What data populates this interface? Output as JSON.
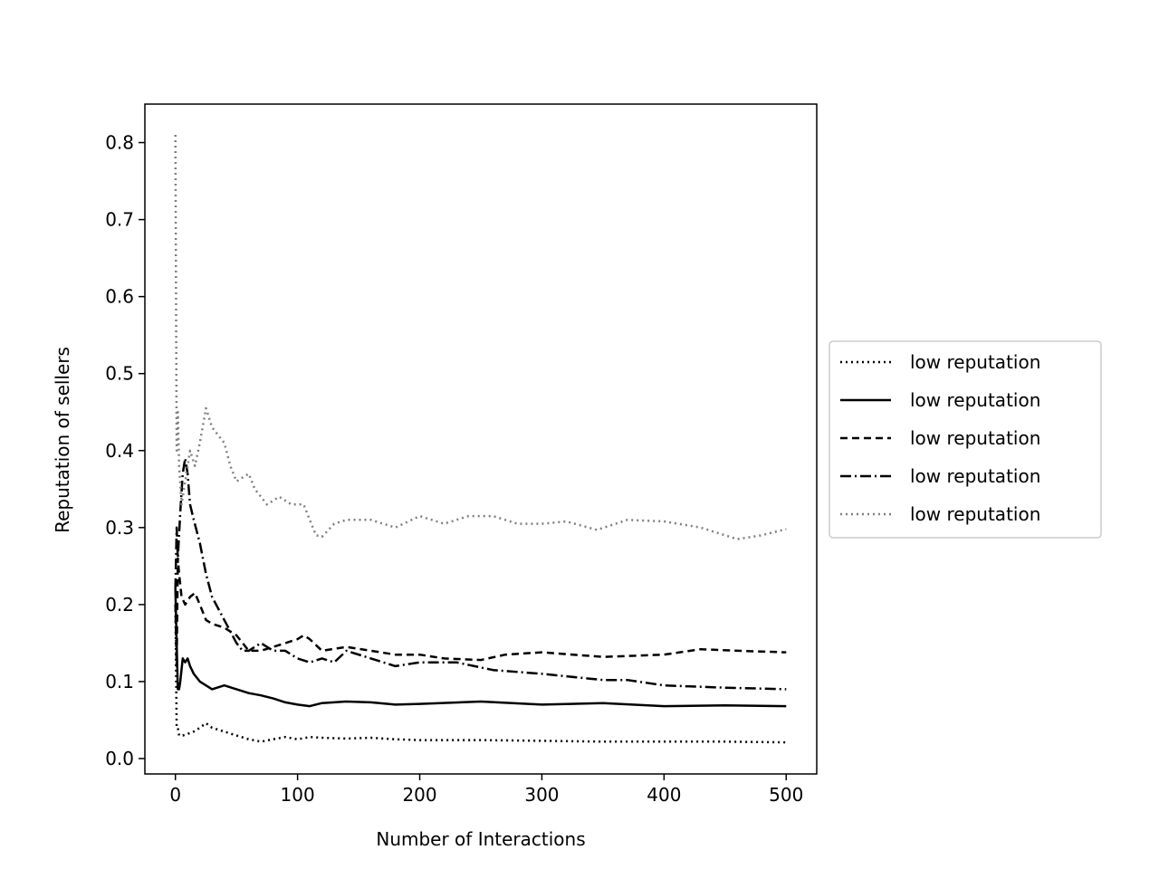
{
  "chart_data": {
    "type": "line",
    "title": "",
    "xlabel": "Number of Interactions",
    "ylabel": "Reputation of sellers",
    "xlim": [
      -25,
      525
    ],
    "ylim": [
      -0.02,
      0.85
    ],
    "x_ticks": [
      0,
      100,
      200,
      300,
      400,
      500
    ],
    "x_tick_labels": [
      "0",
      "100",
      "200",
      "300",
      "400",
      "500"
    ],
    "y_ticks": [
      0.0,
      0.1,
      0.2,
      0.3,
      0.4,
      0.5,
      0.6,
      0.7,
      0.8
    ],
    "y_tick_labels": [
      "0.0",
      "0.1",
      "0.2",
      "0.3",
      "0.4",
      "0.5",
      "0.6",
      "0.7",
      "0.8"
    ],
    "grid": false,
    "legend_position": "center-right outside",
    "series": [
      {
        "name": "low reputation",
        "color": "#000000",
        "style": "dotted",
        "points": [
          [
            0,
            0.2
          ],
          [
            1,
            0.04
          ],
          [
            2,
            0.04
          ],
          [
            3,
            0.03
          ],
          [
            6,
            0.03
          ],
          [
            10,
            0.032
          ],
          [
            15,
            0.035
          ],
          [
            20,
            0.04
          ],
          [
            25,
            0.046
          ],
          [
            30,
            0.04
          ],
          [
            40,
            0.035
          ],
          [
            50,
            0.03
          ],
          [
            60,
            0.025
          ],
          [
            70,
            0.022
          ],
          [
            80,
            0.025
          ],
          [
            90,
            0.028
          ],
          [
            100,
            0.025
          ],
          [
            110,
            0.028
          ],
          [
            120,
            0.027
          ],
          [
            140,
            0.026
          ],
          [
            160,
            0.027
          ],
          [
            180,
            0.025
          ],
          [
            200,
            0.024
          ],
          [
            250,
            0.024
          ],
          [
            300,
            0.023
          ],
          [
            350,
            0.022
          ],
          [
            400,
            0.022
          ],
          [
            450,
            0.022
          ],
          [
            500,
            0.021
          ]
        ]
      },
      {
        "name": "low reputation",
        "color": "#000000",
        "style": "solid",
        "points": [
          [
            0,
            0.22
          ],
          [
            1,
            0.15
          ],
          [
            2,
            0.09
          ],
          [
            3,
            0.09
          ],
          [
            4,
            0.1
          ],
          [
            6,
            0.13
          ],
          [
            8,
            0.125
          ],
          [
            10,
            0.13
          ],
          [
            12,
            0.12
          ],
          [
            15,
            0.11
          ],
          [
            20,
            0.1
          ],
          [
            25,
            0.095
          ],
          [
            30,
            0.09
          ],
          [
            40,
            0.095
          ],
          [
            50,
            0.09
          ],
          [
            60,
            0.085
          ],
          [
            70,
            0.082
          ],
          [
            80,
            0.078
          ],
          [
            90,
            0.073
          ],
          [
            100,
            0.07
          ],
          [
            110,
            0.068
          ],
          [
            120,
            0.072
          ],
          [
            140,
            0.074
          ],
          [
            160,
            0.073
          ],
          [
            180,
            0.07
          ],
          [
            200,
            0.071
          ],
          [
            250,
            0.074
          ],
          [
            300,
            0.07
          ],
          [
            350,
            0.072
          ],
          [
            400,
            0.068
          ],
          [
            450,
            0.069
          ],
          [
            500,
            0.068
          ]
        ]
      },
      {
        "name": "low reputation",
        "color": "#000000",
        "style": "dashed",
        "points": [
          [
            0,
            0.2
          ],
          [
            1,
            0.12
          ],
          [
            2,
            0.26
          ],
          [
            3,
            0.24
          ],
          [
            5,
            0.21
          ],
          [
            8,
            0.2
          ],
          [
            12,
            0.21
          ],
          [
            16,
            0.215
          ],
          [
            20,
            0.2
          ],
          [
            25,
            0.18
          ],
          [
            30,
            0.175
          ],
          [
            40,
            0.17
          ],
          [
            50,
            0.16
          ],
          [
            60,
            0.14
          ],
          [
            70,
            0.14
          ],
          [
            80,
            0.145
          ],
          [
            90,
            0.15
          ],
          [
            100,
            0.155
          ],
          [
            105,
            0.16
          ],
          [
            110,
            0.155
          ],
          [
            120,
            0.14
          ],
          [
            140,
            0.145
          ],
          [
            160,
            0.14
          ],
          [
            180,
            0.135
          ],
          [
            200,
            0.135
          ],
          [
            220,
            0.13
          ],
          [
            250,
            0.128
          ],
          [
            270,
            0.135
          ],
          [
            300,
            0.138
          ],
          [
            350,
            0.132
          ],
          [
            400,
            0.135
          ],
          [
            430,
            0.142
          ],
          [
            460,
            0.14
          ],
          [
            500,
            0.138
          ]
        ]
      },
      {
        "name": "low reputation",
        "color": "#000000",
        "style": "dashdot",
        "points": [
          [
            0,
            0.22
          ],
          [
            1,
            0.3
          ],
          [
            2,
            0.26
          ],
          [
            4,
            0.32
          ],
          [
            6,
            0.37
          ],
          [
            8,
            0.39
          ],
          [
            10,
            0.37
          ],
          [
            12,
            0.33
          ],
          [
            15,
            0.31
          ],
          [
            20,
            0.28
          ],
          [
            25,
            0.24
          ],
          [
            30,
            0.21
          ],
          [
            40,
            0.18
          ],
          [
            50,
            0.15
          ],
          [
            55,
            0.14
          ],
          [
            60,
            0.14
          ],
          [
            70,
            0.15
          ],
          [
            80,
            0.14
          ],
          [
            90,
            0.14
          ],
          [
            100,
            0.13
          ],
          [
            110,
            0.125
          ],
          [
            120,
            0.13
          ],
          [
            130,
            0.125
          ],
          [
            140,
            0.14
          ],
          [
            160,
            0.13
          ],
          [
            180,
            0.12
          ],
          [
            200,
            0.125
          ],
          [
            230,
            0.125
          ],
          [
            260,
            0.115
          ],
          [
            300,
            0.11
          ],
          [
            350,
            0.102
          ],
          [
            370,
            0.102
          ],
          [
            400,
            0.095
          ],
          [
            450,
            0.092
          ],
          [
            500,
            0.09
          ]
        ]
      },
      {
        "name": "low reputation",
        "color": "#808080",
        "style": "dotted",
        "points": [
          [
            0,
            0.81
          ],
          [
            1,
            0.4
          ],
          [
            2,
            0.45
          ],
          [
            3,
            0.38
          ],
          [
            5,
            0.33
          ],
          [
            8,
            0.36
          ],
          [
            12,
            0.4
          ],
          [
            16,
            0.38
          ],
          [
            20,
            0.41
          ],
          [
            25,
            0.455
          ],
          [
            30,
            0.43
          ],
          [
            35,
            0.42
          ],
          [
            40,
            0.41
          ],
          [
            45,
            0.38
          ],
          [
            50,
            0.36
          ],
          [
            55,
            0.365
          ],
          [
            60,
            0.37
          ],
          [
            65,
            0.35
          ],
          [
            75,
            0.33
          ],
          [
            85,
            0.34
          ],
          [
            95,
            0.33
          ],
          [
            105,
            0.33
          ],
          [
            110,
            0.31
          ],
          [
            115,
            0.29
          ],
          [
            120,
            0.288
          ],
          [
            130,
            0.305
          ],
          [
            140,
            0.31
          ],
          [
            160,
            0.31
          ],
          [
            180,
            0.3
          ],
          [
            200,
            0.315
          ],
          [
            220,
            0.305
          ],
          [
            240,
            0.315
          ],
          [
            260,
            0.315
          ],
          [
            280,
            0.305
          ],
          [
            300,
            0.305
          ],
          [
            320,
            0.308
          ],
          [
            345,
            0.297
          ],
          [
            370,
            0.31
          ],
          [
            400,
            0.308
          ],
          [
            430,
            0.3
          ],
          [
            460,
            0.285
          ],
          [
            480,
            0.29
          ],
          [
            500,
            0.298
          ]
        ]
      }
    ]
  }
}
